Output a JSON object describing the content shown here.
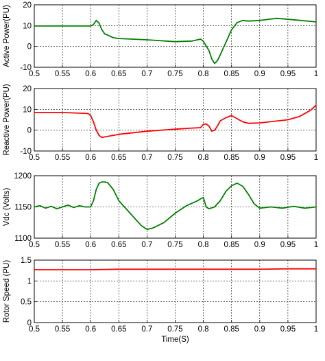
{
  "chart_data": [
    {
      "type": "line",
      "ylabel": "Active Power(PU)",
      "xlabel": "",
      "xlim": [
        0.5,
        1.0
      ],
      "ylim": [
        -10,
        20
      ],
      "xticks": [
        "0.5",
        "0.55",
        "0.6",
        "0.65",
        "0.7",
        "0.75",
        "0.8",
        "0.85",
        "0.9",
        "0.95",
        "1"
      ],
      "yticks": [
        "-10",
        "0",
        "10",
        "20"
      ],
      "grid": true,
      "color": "#008000",
      "x": [
        0.5,
        0.55,
        0.6,
        0.605,
        0.61,
        0.615,
        0.62,
        0.625,
        0.63,
        0.64,
        0.65,
        0.7,
        0.75,
        0.78,
        0.795,
        0.8,
        0.81,
        0.815,
        0.82,
        0.825,
        0.83,
        0.84,
        0.85,
        0.86,
        0.87,
        0.88,
        0.9,
        0.93,
        0.96,
        1.0
      ],
      "y": [
        9.8,
        9.8,
        9.8,
        10.5,
        12.5,
        11.2,
        8.0,
        6.0,
        5.5,
        4.2,
        3.8,
        3.2,
        2.3,
        2.6,
        3.5,
        2.5,
        -2.0,
        -6.0,
        -8.2,
        -6.8,
        -4.0,
        2.0,
        8.0,
        11.5,
        12.5,
        12.2,
        12.5,
        13.5,
        12.8,
        11.8
      ]
    },
    {
      "type": "line",
      "ylabel": "Reactive Power(PU)",
      "xlabel": "",
      "xlim": [
        0.5,
        1.0
      ],
      "ylim": [
        -10,
        20
      ],
      "xticks": [
        "0.5",
        "0.55",
        "0.6",
        "0.65",
        "0.7",
        "0.75",
        "0.8",
        "0.85",
        "0.9",
        "0.95",
        "1"
      ],
      "yticks": [
        "-10",
        "0",
        "10",
        "20"
      ],
      "grid": true,
      "color": "#ff0000",
      "x": [
        0.5,
        0.55,
        0.595,
        0.6,
        0.605,
        0.61,
        0.615,
        0.62,
        0.63,
        0.65,
        0.7,
        0.75,
        0.78,
        0.795,
        0.8,
        0.805,
        0.81,
        0.815,
        0.82,
        0.825,
        0.83,
        0.84,
        0.85,
        0.86,
        0.87,
        0.88,
        0.9,
        0.95,
        0.97,
        0.99,
        1.0
      ],
      "y": [
        8.5,
        8.5,
        8.0,
        7.0,
        4.0,
        0.0,
        -2.5,
        -3.5,
        -3.0,
        -2.0,
        -0.5,
        0.5,
        1.0,
        1.2,
        2.8,
        3.0,
        2.0,
        -0.5,
        0.0,
        2.0,
        4.5,
        6.0,
        7.0,
        5.5,
        4.0,
        3.3,
        3.5,
        5.0,
        6.5,
        9.5,
        12.0
      ]
    },
    {
      "type": "line",
      "ylabel": "Vdc (Volts)",
      "xlabel": "",
      "xlim": [
        0.5,
        1.0
      ],
      "ylim": [
        1100,
        1200
      ],
      "xticks": [
        "0.5",
        "0.55",
        "0.6",
        "0.65",
        "0.7",
        "0.75",
        "0.8",
        "0.85",
        "0.9",
        "0.95",
        "1"
      ],
      "yticks": [
        "1100",
        "1150",
        "1200"
      ],
      "grid": true,
      "color": "#008000",
      "x": [
        0.5,
        0.51,
        0.52,
        0.53,
        0.54,
        0.55,
        0.56,
        0.57,
        0.58,
        0.59,
        0.6,
        0.605,
        0.61,
        0.615,
        0.62,
        0.625,
        0.63,
        0.64,
        0.65,
        0.67,
        0.69,
        0.7,
        0.71,
        0.73,
        0.75,
        0.77,
        0.79,
        0.795,
        0.8,
        0.805,
        0.81,
        0.82,
        0.83,
        0.84,
        0.85,
        0.86,
        0.87,
        0.88,
        0.89,
        0.9,
        0.92,
        0.94,
        0.96,
        0.98,
        1.0
      ],
      "y": [
        1150,
        1152,
        1148,
        1151,
        1147,
        1150,
        1153,
        1149,
        1152,
        1150,
        1150,
        1160,
        1178,
        1188,
        1190,
        1190,
        1189,
        1178,
        1160,
        1140,
        1120,
        1114,
        1116,
        1125,
        1140,
        1152,
        1160,
        1163,
        1165,
        1150,
        1147,
        1150,
        1160,
        1175,
        1184,
        1188,
        1183,
        1170,
        1155,
        1148,
        1150,
        1148,
        1151,
        1148,
        1150
      ]
    },
    {
      "type": "line",
      "ylabel": "Rotor Speed (PU)",
      "xlabel": "Time(S)",
      "xlim": [
        0.5,
        1.0
      ],
      "ylim": [
        0,
        1.5
      ],
      "xticks": [
        "0.5",
        "0.55",
        "0.6",
        "0.65",
        "0.7",
        "0.75",
        "0.8",
        "0.85",
        "0.9",
        "0.95",
        "1"
      ],
      "yticks": [
        "0",
        "0.5",
        "1",
        "1.5"
      ],
      "grid": true,
      "color": "#ff0000",
      "x": [
        0.5,
        0.55,
        0.6,
        0.65,
        0.7,
        0.75,
        0.8,
        0.85,
        0.9,
        0.95,
        1.0
      ],
      "y": [
        1.27,
        1.27,
        1.27,
        1.28,
        1.28,
        1.28,
        1.28,
        1.28,
        1.28,
        1.29,
        1.29
      ]
    }
  ]
}
